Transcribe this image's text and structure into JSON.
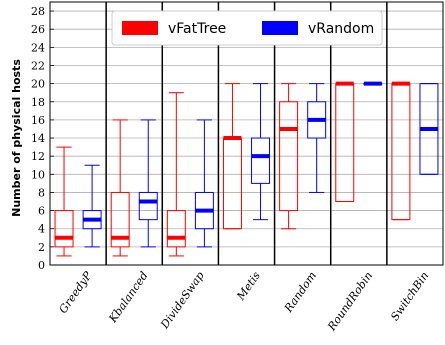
{
  "chart_data": {
    "type": "box",
    "ylabel": "Number of physical hosts",
    "xlabel": "",
    "ylim": [
      0,
      29
    ],
    "yticks": [
      0,
      2,
      4,
      6,
      8,
      10,
      12,
      14,
      16,
      18,
      20,
      22,
      24,
      26,
      28
    ],
    "grid": "horizontal",
    "legend_position": "top-center",
    "categories": [
      "GreedyP",
      "Kbalanced",
      "DivideSwap",
      "Metis",
      "Random",
      "RoundRobin",
      "SwitchBin"
    ],
    "series": [
      {
        "name": "vFatTree",
        "color": "#ff0000",
        "boxes": [
          {
            "whislo": 1,
            "q1": 2,
            "med": 3,
            "q3": 6,
            "whishi": 13
          },
          {
            "whislo": 1,
            "q1": 2,
            "med": 3,
            "q3": 8,
            "whishi": 16
          },
          {
            "whislo": 1,
            "q1": 2,
            "med": 3,
            "q3": 6,
            "whishi": 19
          },
          {
            "whislo": 4,
            "q1": 4,
            "med": 14,
            "q3": 14,
            "whishi": 20
          },
          {
            "whislo": 4,
            "q1": 6,
            "med": 15,
            "q3": 18,
            "whishi": 20
          },
          {
            "whislo": 7,
            "q1": 7,
            "med": 20,
            "q3": 20,
            "whishi": 20
          },
          {
            "whislo": 5,
            "q1": 5,
            "med": 20,
            "q3": 20,
            "whishi": 20
          }
        ]
      },
      {
        "name": "vRandom",
        "color": "#0000ff",
        "boxes": [
          {
            "whislo": 2,
            "q1": 4,
            "med": 5,
            "q3": 6,
            "whishi": 11
          },
          {
            "whislo": 2,
            "q1": 5,
            "med": 7,
            "q3": 8,
            "whishi": 16
          },
          {
            "whislo": 2,
            "q1": 4,
            "med": 6,
            "q3": 8,
            "whishi": 16
          },
          {
            "whislo": 5,
            "q1": 9,
            "med": 12,
            "q3": 14,
            "whishi": 20
          },
          {
            "whislo": 8,
            "q1": 14,
            "med": 16,
            "q3": 18,
            "whishi": 20
          },
          {
            "whislo": 20,
            "q1": 20,
            "med": 20,
            "q3": 20,
            "whishi": 20
          },
          {
            "whislo": 10,
            "q1": 10,
            "med": 15,
            "q3": 20,
            "whishi": 20
          }
        ]
      }
    ]
  }
}
